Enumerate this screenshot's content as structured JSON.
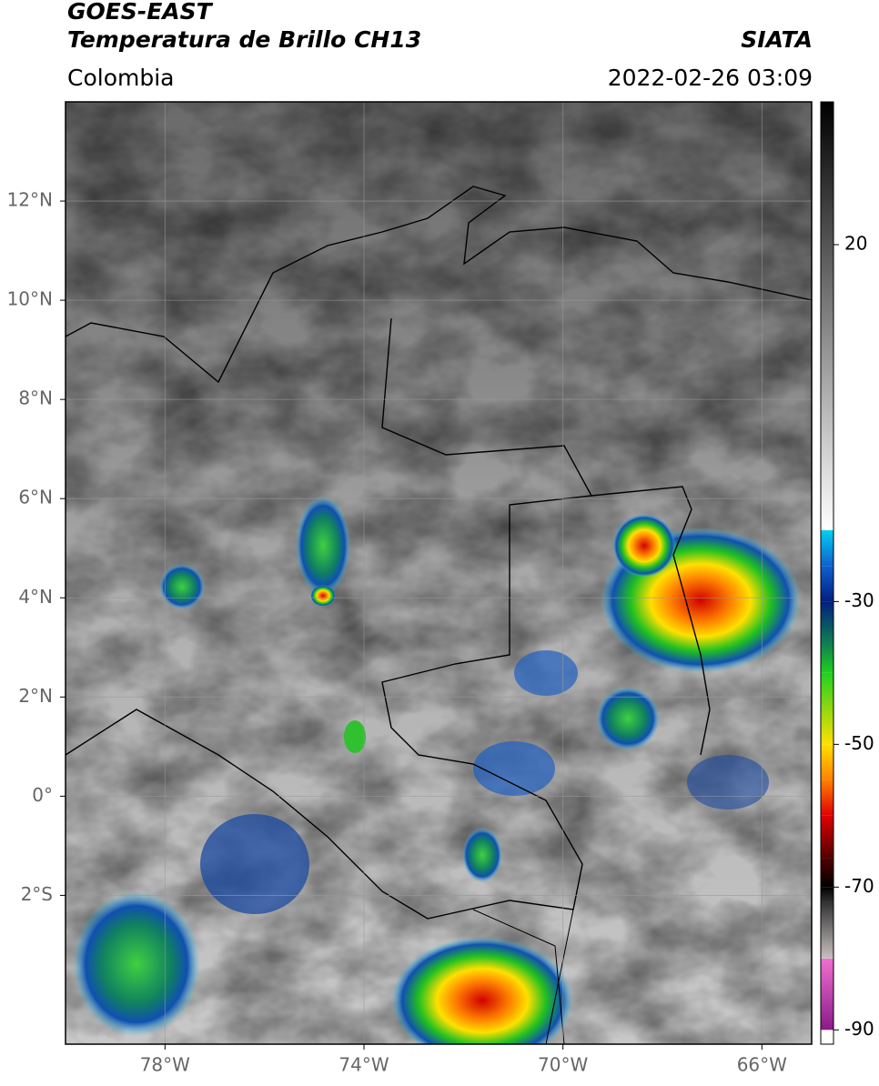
{
  "header": {
    "title": "GOES-EAST",
    "subtitle": "Temperatura de Brillo CH13",
    "source": "SIATA",
    "region": "Colombia",
    "timestamp": "2022-02-26 03:09"
  },
  "map": {
    "xlim": [
      -80,
      -65
    ],
    "ylim": [
      -5,
      14
    ],
    "grid": true,
    "xticks": [
      {
        "value": -78,
        "label": "78°W"
      },
      {
        "value": -74,
        "label": "74°W"
      },
      {
        "value": -70,
        "label": "70°W"
      },
      {
        "value": -66,
        "label": "66°W"
      }
    ],
    "yticks": [
      {
        "value": 12,
        "label": "12°N"
      },
      {
        "value": 10,
        "label": "10°N"
      },
      {
        "value": 8,
        "label": "8°N"
      },
      {
        "value": 6,
        "label": "6°N"
      },
      {
        "value": 4,
        "label": "4°N"
      },
      {
        "value": 2,
        "label": "2°N"
      },
      {
        "value": 0,
        "label": "0°"
      },
      {
        "value": -2,
        "label": "2°S"
      }
    ]
  },
  "colorbar": {
    "lim": [
      -92,
      40
    ],
    "ticks": [
      20,
      -30,
      -50,
      -70,
      -90
    ],
    "colormap": [
      {
        "value": -92,
        "color": "#ffffff"
      },
      {
        "value": -90,
        "color": "#ffffff"
      },
      {
        "value": -90,
        "color": "#8a1a8a"
      },
      {
        "value": -80,
        "color": "#f070d0"
      },
      {
        "value": -80,
        "color": "#c8c0c0"
      },
      {
        "value": -72,
        "color": "#303030"
      },
      {
        "value": -70,
        "color": "#000000"
      },
      {
        "value": -66,
        "color": "#500000"
      },
      {
        "value": -60,
        "color": "#e00000"
      },
      {
        "value": -55,
        "color": "#ff8000"
      },
      {
        "value": -50,
        "color": "#ffe000"
      },
      {
        "value": -40,
        "color": "#20d020"
      },
      {
        "value": -36,
        "color": "#108050"
      },
      {
        "value": -30,
        "color": "#002080"
      },
      {
        "value": -25,
        "color": "#1060d0"
      },
      {
        "value": -20,
        "color": "#00d0f0"
      },
      {
        "value": -20,
        "color": "#ffffff"
      },
      {
        "value": 40,
        "color": "#000000"
      }
    ]
  }
}
